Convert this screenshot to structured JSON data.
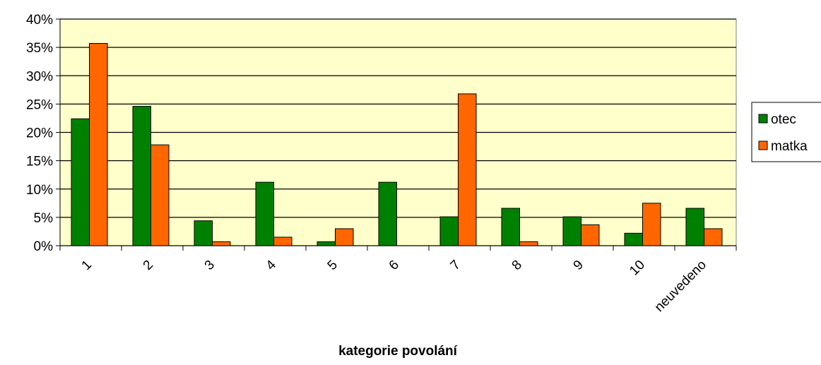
{
  "chart_data": {
    "type": "bar",
    "xlabel": "kategorie povolání",
    "categories": [
      "1",
      "2",
      "3",
      "4",
      "5",
      "6",
      "7",
      "8",
      "9",
      "10",
      "neuvedeno"
    ],
    "series": [
      {
        "name": "otec",
        "color": "#008000",
        "values": [
          22.4,
          24.6,
          4.4,
          11.2,
          0.7,
          11.2,
          5.1,
          6.6,
          5.1,
          2.2,
          6.6
        ]
      },
      {
        "name": "matka",
        "color": "#ff6600",
        "values": [
          35.7,
          17.8,
          0.7,
          1.5,
          3.0,
          0,
          26.8,
          0.7,
          3.7,
          7.5,
          3.0
        ]
      }
    ],
    "ylim": [
      0,
      40
    ],
    "yticks": [
      {
        "value": 0,
        "label": "0%"
      },
      {
        "value": 5,
        "label": "5%"
      },
      {
        "value": 10,
        "label": "10%"
      },
      {
        "value": 15,
        "label": "15%"
      },
      {
        "value": 20,
        "label": "20%"
      },
      {
        "value": 25,
        "label": "25%"
      },
      {
        "value": 30,
        "label": "30%"
      },
      {
        "value": 35,
        "label": "35%"
      },
      {
        "value": 40,
        "label": "40%"
      }
    ],
    "grid": true,
    "legend": "right"
  }
}
